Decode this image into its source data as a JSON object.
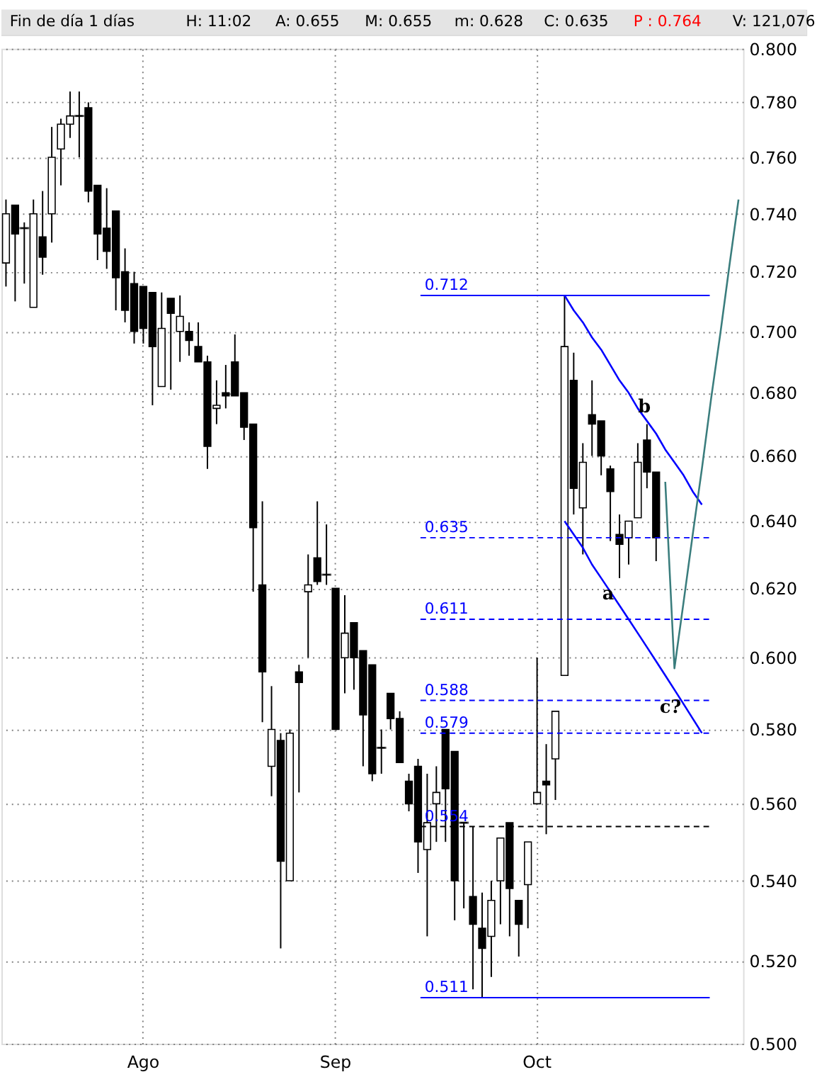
{
  "chart_data": {
    "type": "candlestick",
    "title": "Fin de día 1 días",
    "categories": [
      null,
      null,
      null,
      null,
      null,
      null,
      null,
      null,
      null,
      null,
      null,
      null,
      null,
      null,
      null,
      "Ago",
      null,
      null,
      null,
      null,
      null,
      null,
      null,
      null,
      null,
      null,
      null,
      null,
      null,
      null,
      null,
      null,
      null,
      null,
      null,
      null,
      "Sep",
      null,
      null,
      null,
      null,
      null,
      null,
      null,
      null,
      null,
      null,
      null,
      null,
      null,
      null,
      null,
      null,
      null,
      null,
      null,
      null,
      null,
      "Oct",
      null,
      null,
      null,
      null,
      null,
      null,
      null,
      null,
      null,
      null,
      null,
      null,
      null,
      null,
      null,
      null,
      null,
      null,
      null,
      null,
      null,
      null
    ],
    "ohlc": [
      [
        0.723,
        0.745,
        0.715,
        0.74
      ],
      [
        0.743,
        0.743,
        0.71,
        0.733
      ],
      [
        0.735,
        0.737,
        0.716,
        0.735
      ],
      [
        0.708,
        0.745,
        0.708,
        0.74
      ],
      [
        0.732,
        0.748,
        0.719,
        0.725
      ],
      [
        0.74,
        0.771,
        0.73,
        0.76
      ],
      [
        0.763,
        0.774,
        0.75,
        0.772
      ],
      [
        0.772,
        0.784,
        0.767,
        0.775
      ],
      [
        0.775,
        0.784,
        0.76,
        0.775
      ],
      [
        0.778,
        0.78,
        0.744,
        0.748
      ],
      [
        0.75,
        0.75,
        0.724,
        0.733
      ],
      [
        0.735,
        0.749,
        0.721,
        0.727
      ],
      [
        0.741,
        0.741,
        0.707,
        0.718
      ],
      [
        0.72,
        0.728,
        0.703,
        0.707
      ],
      [
        0.716,
        0.72,
        0.696,
        0.7
      ],
      [
        0.715,
        0.715,
        0.696,
        0.701
      ],
      [
        0.713,
        0.713,
        0.676,
        0.695
      ],
      [
        0.682,
        0.713,
        0.682,
        0.701
      ],
      [
        0.711,
        0.711,
        0.681,
        0.706
      ],
      [
        0.7,
        0.712,
        0.69,
        0.705
      ],
      [
        0.7,
        0.703,
        0.692,
        0.697
      ],
      [
        0.695,
        0.703,
        0.69,
        0.69
      ],
      [
        0.69,
        0.692,
        0.656,
        0.663
      ],
      [
        0.675,
        0.684,
        0.67,
        0.676
      ],
      [
        0.68,
        0.689,
        0.675,
        0.679
      ],
      [
        0.69,
        0.699,
        0.679,
        0.679
      ],
      [
        0.68,
        0.68,
        0.665,
        0.669
      ],
      [
        0.67,
        0.67,
        0.619,
        0.638
      ],
      [
        0.621,
        0.646,
        0.582,
        0.596
      ],
      [
        0.57,
        0.592,
        0.562,
        0.58
      ],
      [
        0.577,
        0.579,
        0.523,
        0.545
      ],
      [
        0.54,
        0.58,
        0.54,
        0.579
      ],
      [
        0.596,
        0.598,
        0.563,
        0.593
      ],
      [
        0.619,
        0.63,
        0.6,
        0.621
      ],
      [
        0.629,
        0.646,
        0.621,
        0.622
      ],
      [
        0.624,
        0.639,
        0.621,
        0.624
      ],
      [
        0.62,
        0.62,
        0.58,
        0.58
      ],
      [
        0.6,
        0.618,
        0.59,
        0.607
      ],
      [
        0.61,
        0.61,
        0.591,
        0.6
      ],
      [
        0.602,
        0.602,
        0.57,
        0.584
      ],
      [
        0.598,
        0.598,
        0.566,
        0.568
      ],
      [
        0.575,
        0.58,
        0.568,
        0.575
      ],
      [
        0.59,
        0.59,
        0.58,
        0.583
      ],
      [
        0.583,
        0.585,
        0.571,
        0.571
      ],
      [
        0.566,
        0.568,
        0.558,
        0.56
      ],
      [
        0.57,
        0.572,
        0.542,
        0.55
      ],
      [
        0.548,
        0.568,
        0.526,
        0.555
      ],
      [
        0.56,
        0.57,
        0.55,
        0.563
      ],
      [
        0.58,
        0.58,
        0.55,
        0.564
      ],
      [
        0.574,
        0.574,
        0.53,
        0.54
      ],
      [
        0.555,
        0.555,
        0.533,
        0.555
      ],
      [
        0.536,
        0.554,
        0.513,
        0.529
      ],
      [
        0.528,
        0.537,
        0.511,
        0.523
      ],
      [
        0.526,
        0.54,
        0.516,
        0.535
      ],
      [
        0.54,
        0.551,
        0.529,
        0.551
      ],
      [
        0.555,
        0.555,
        0.526,
        0.538
      ],
      [
        0.535,
        0.535,
        0.521,
        0.529
      ],
      [
        0.539,
        0.55,
        0.528,
        0.55
      ],
      [
        0.56,
        0.6,
        0.56,
        0.563
      ],
      [
        0.566,
        0.576,
        0.552,
        0.565
      ],
      [
        0.572,
        0.585,
        0.561,
        0.585
      ],
      [
        0.595,
        0.712,
        0.595,
        0.695
      ],
      [
        0.684,
        0.693,
        0.642,
        0.65
      ],
      [
        0.644,
        0.664,
        0.63,
        0.658
      ],
      [
        0.673,
        0.684,
        0.66,
        0.67
      ],
      [
        0.671,
        0.671,
        0.654,
        0.66
      ],
      [
        0.656,
        0.657,
        0.634,
        0.649
      ],
      [
        0.636,
        0.642,
        0.623,
        0.633
      ],
      [
        0.635,
        0.64,
        0.627,
        0.64
      ],
      [
        0.641,
        0.664,
        0.641,
        0.658
      ],
      [
        0.665,
        0.67,
        0.65,
        0.655
      ],
      [
        0.655,
        0.655,
        0.628,
        0.635
      ],
      null,
      null,
      null,
      null,
      null,
      null,
      null,
      null,
      null
    ],
    "series": [
      {
        "type": "line",
        "color": "#0000ff",
        "values": [
          null,
          null,
          null,
          null,
          null,
          null,
          null,
          null,
          null,
          null,
          null,
          null,
          null,
          null,
          null,
          null,
          null,
          null,
          null,
          null,
          null,
          null,
          null,
          null,
          null,
          null,
          null,
          null,
          null,
          null,
          null,
          null,
          null,
          null,
          null,
          null,
          null,
          null,
          null,
          null,
          null,
          null,
          null,
          null,
          null,
          null,
          null,
          null,
          null,
          null,
          null,
          null,
          null,
          null,
          null,
          null,
          null,
          null,
          null,
          null,
          null,
          0.712,
          0.707,
          0.703,
          0.698,
          0.694,
          0.689,
          0.684,
          0.68,
          0.675,
          0.671,
          0.667,
          0.662,
          0.658,
          0.654,
          0.649,
          0.645,
          null,
          null,
          null,
          null
        ]
      },
      {
        "type": "line",
        "color": "#0000ff",
        "values": [
          null,
          null,
          null,
          null,
          null,
          null,
          null,
          null,
          null,
          null,
          null,
          null,
          null,
          null,
          null,
          null,
          null,
          null,
          null,
          null,
          null,
          null,
          null,
          null,
          null,
          null,
          null,
          null,
          null,
          null,
          null,
          null,
          null,
          null,
          null,
          null,
          null,
          null,
          null,
          null,
          null,
          null,
          null,
          null,
          null,
          null,
          null,
          null,
          null,
          null,
          null,
          null,
          null,
          null,
          null,
          null,
          null,
          null,
          null,
          null,
          null,
          0.64,
          0.636,
          0.632,
          0.627,
          0.623,
          0.619,
          0.615,
          0.611,
          0.607,
          0.603,
          0.599,
          0.595,
          0.591,
          0.587,
          0.583,
          0.579,
          null,
          null,
          null,
          null
        ]
      },
      {
        "type": "line",
        "color": "#3a7d7d",
        "values": [
          null,
          null,
          null,
          null,
          null,
          null,
          null,
          null,
          null,
          null,
          null,
          null,
          null,
          null,
          null,
          null,
          null,
          null,
          null,
          null,
          null,
          null,
          null,
          null,
          null,
          null,
          null,
          null,
          null,
          null,
          null,
          null,
          null,
          null,
          null,
          null,
          null,
          null,
          null,
          null,
          null,
          null,
          null,
          null,
          null,
          null,
          null,
          null,
          null,
          null,
          null,
          null,
          null,
          null,
          null,
          null,
          null,
          null,
          null,
          null,
          null,
          null,
          null,
          null,
          null,
          null,
          null,
          null,
          null,
          null,
          null,
          null,
          0.652,
          0.597,
          0.616,
          0.636,
          0.656,
          0.678,
          0.699,
          0.722,
          0.745
        ]
      }
    ],
    "ref_lines": [
      {
        "axis": "y",
        "value": 0.712,
        "label": "0.712",
        "color": "#0000ff",
        "line_style": "solid"
      },
      {
        "axis": "y",
        "value": 0.635,
        "label": "0.635",
        "color": "#0000ff",
        "line_style": "dashed"
      },
      {
        "axis": "y",
        "value": 0.611,
        "label": "0.611",
        "color": "#0000ff",
        "line_style": "dashed"
      },
      {
        "axis": "y",
        "value": 0.588,
        "label": "0.588",
        "color": "#0000ff",
        "line_style": "dashed"
      },
      {
        "axis": "y",
        "value": 0.579,
        "label": "0.579",
        "color": "#0000ff",
        "line_style": "dashed"
      },
      {
        "axis": "y",
        "value": 0.554,
        "label": "0.554",
        "color": "#000000",
        "line_style": "dashed"
      },
      {
        "axis": "y",
        "value": 0.511,
        "label": "0.511",
        "color": "#0000ff",
        "line_style": "solid"
      }
    ],
    "annotations": [
      "H: 11:02",
      "A: 0.655",
      "M: 0.655",
      "m: 0.628",
      "C: 0.635",
      "P : 0.764",
      "V: 121,076",
      "a",
      "b",
      "c?"
    ],
    "ylim": [
      0.5,
      0.8
    ],
    "yticks": [
      {
        "value": 0.5,
        "label": "0.500"
      },
      {
        "value": 0.52,
        "label": "0.520"
      },
      {
        "value": 0.54,
        "label": "0.540"
      },
      {
        "value": 0.56,
        "label": "0.560"
      },
      {
        "value": 0.58,
        "label": "0.580"
      },
      {
        "value": 0.6,
        "label": "0.600"
      },
      {
        "value": 0.62,
        "label": "0.620"
      },
      {
        "value": 0.64,
        "label": "0.640"
      },
      {
        "value": 0.66,
        "label": "0.660"
      },
      {
        "value": 0.68,
        "label": "0.680"
      },
      {
        "value": 0.7,
        "label": "0.700"
      },
      {
        "value": 0.72,
        "label": "0.720"
      },
      {
        "value": 0.74,
        "label": "0.740"
      },
      {
        "value": 0.76,
        "label": "0.760"
      },
      {
        "value": 0.78,
        "label": "0.780"
      },
      {
        "value": 0.8,
        "label": "0.800"
      }
    ],
    "log": true,
    "grid": true
  }
}
